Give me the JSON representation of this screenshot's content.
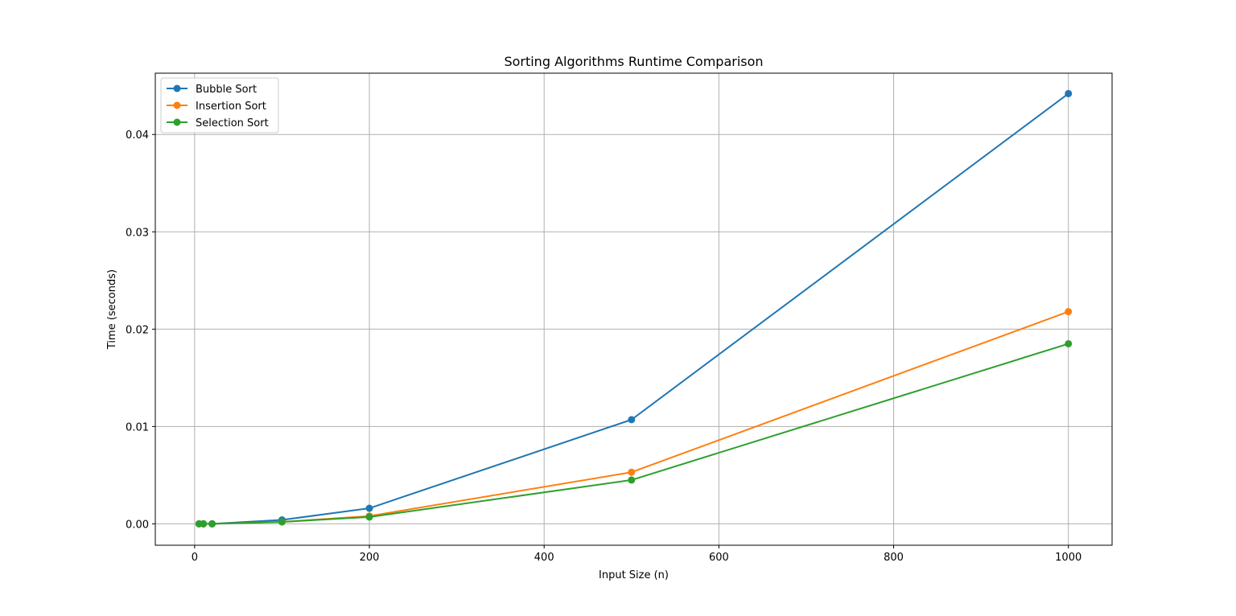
{
  "chart_data": {
    "type": "line",
    "title": "Sorting Algorithms Runtime Comparison",
    "xlabel": "Input Size (n)",
    "ylabel": "Time (seconds)",
    "xlim": [
      -45,
      1050
    ],
    "ylim": [
      -0.0022,
      0.0463
    ],
    "xticks": [
      0,
      200,
      400,
      600,
      800,
      1000
    ],
    "xtick_labels": [
      "0",
      "200",
      "400",
      "600",
      "800",
      "1000"
    ],
    "yticks": [
      0.0,
      0.01,
      0.02,
      0.03,
      0.04
    ],
    "ytick_labels": [
      "0.00",
      "0.01",
      "0.02",
      "0.03",
      "0.04"
    ],
    "grid": true,
    "legend_position": "upper-left",
    "x": [
      5,
      10,
      20,
      100,
      200,
      500,
      1000
    ],
    "series": [
      {
        "name": "Bubble Sort",
        "color": "#1f77b4",
        "values": [
          0.0,
          0.0,
          0.0,
          0.0004,
          0.0016,
          0.0107,
          0.0442
        ]
      },
      {
        "name": "Insertion Sort",
        "color": "#ff7f0e",
        "values": [
          0.0,
          0.0,
          0.0,
          0.0002,
          0.0008,
          0.0053,
          0.0218
        ]
      },
      {
        "name": "Selection Sort",
        "color": "#2ca02c",
        "values": [
          0.0,
          0.0,
          0.0,
          0.0002,
          0.0007,
          0.0045,
          0.0185
        ]
      }
    ]
  }
}
